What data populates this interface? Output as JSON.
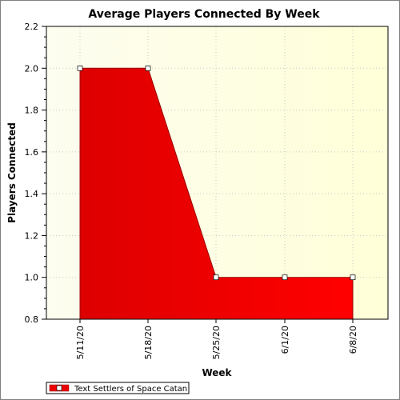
{
  "chart_data": {
    "type": "area",
    "title": "Average Players Connected By Week",
    "xlabel": "Week",
    "ylabel": "Players Connected",
    "categories": [
      "5/11/20",
      "5/18/20",
      "5/25/20",
      "6/1/20",
      "6/8/20"
    ],
    "y_ticks": [
      "0.8",
      "1.0",
      "1.2",
      "1.4",
      "1.6",
      "1.8",
      "2.0",
      "2.2"
    ],
    "ylim": [
      0.8,
      2.2
    ],
    "grid": true,
    "legend_position": "bottom-left",
    "series": [
      {
        "name": "Text Settlers of Space Catan",
        "values": [
          2.0,
          2.0,
          1.0,
          1.0,
          1.0
        ],
        "color": "#ee0000"
      }
    ],
    "colors": {
      "plot_bg_from": "#fbfbe6",
      "plot_bg_to": "#ffffee",
      "area": "#ee0000",
      "area_dark": "#cc0000",
      "marker_fill": "#ffffff"
    }
  }
}
